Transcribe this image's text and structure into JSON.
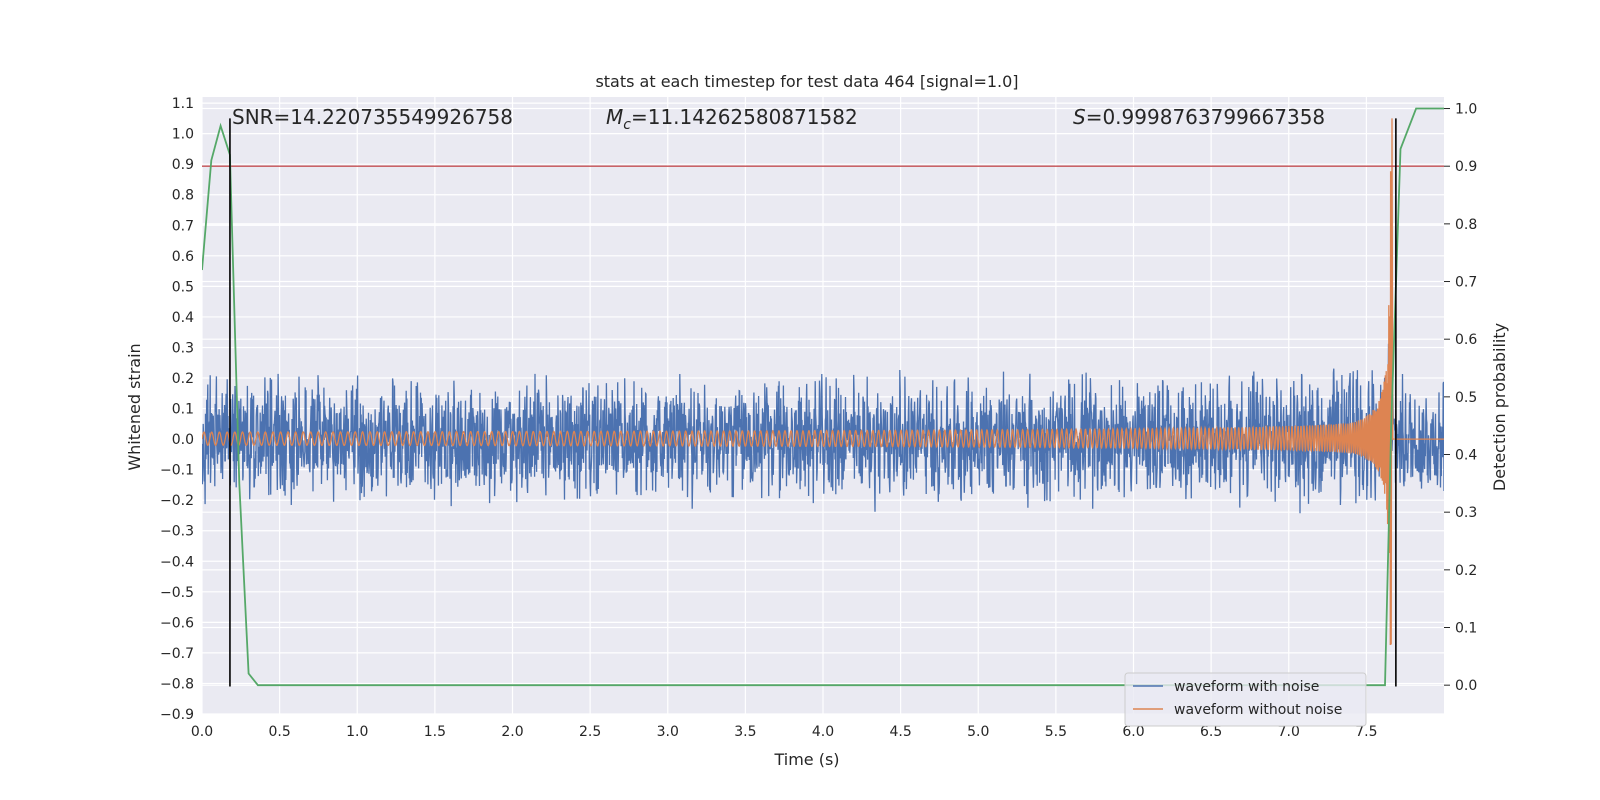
{
  "chart_data": {
    "type": "line",
    "title": "stats at each timestep for test data 464 [signal=1.0]",
    "xlabel": "Time (s)",
    "ylabel": "Whitened strain",
    "y2label": "Detection probability",
    "xlim": [
      0.0,
      8.0
    ],
    "ylim": [
      -0.9,
      1.12
    ],
    "y2lim": [
      -0.05,
      1.02
    ],
    "xticks": [
      "0.0",
      "0.5",
      "1.0",
      "1.5",
      "2.0",
      "2.5",
      "3.0",
      "3.5",
      "4.0",
      "4.5",
      "5.0",
      "5.5",
      "6.0",
      "6.5",
      "7.0",
      "7.5"
    ],
    "yticks": [
      "1.1",
      "1.0",
      "0.9",
      "0.8",
      "0.7",
      "0.6",
      "0.5",
      "0.4",
      "0.3",
      "0.2",
      "0.1",
      "0.0",
      "−0.1",
      "−0.2",
      "−0.3",
      "−0.4",
      "−0.5",
      "−0.6",
      "−0.7",
      "−0.8",
      "−0.9"
    ],
    "y2ticks": [
      "1.0",
      "0.9",
      "0.8",
      "0.7",
      "0.6",
      "0.5",
      "0.4",
      "0.3",
      "0.2",
      "0.1",
      "0.0"
    ],
    "grid": true,
    "legend_position": "lower-right",
    "annotations": {
      "snr": "SNR=14.220735549926758",
      "mc_symbol": "M",
      "mc_sub": "c",
      "mc_value": "=11.14262580871582",
      "s_symbol": "S",
      "s_value": "=0.9998763799667358"
    },
    "series": [
      {
        "name": "waveform with noise",
        "color": "#4c72b0",
        "axis": "left",
        "description_points": {
          "t_start": 0.0,
          "t_end": 8.0,
          "noise_amplitude": 0.2,
          "peak_time": 7.62,
          "peak_max": 0.65,
          "peak_min": -0.59
        }
      },
      {
        "name": "waveform without noise",
        "color": "#dd8452",
        "axis": "left",
        "description_points": {
          "t_start": 0.0,
          "t_end": 7.67,
          "start_amplitude": 0.02,
          "merger_time": 7.66,
          "merger_max": 1.05,
          "merger_min": -0.58,
          "f_start": 20,
          "f_end": 40
        }
      },
      {
        "name": "",
        "color": "#55a868",
        "axis": "right",
        "x": [
          0.0,
          0.06,
          0.12,
          0.18,
          0.24,
          0.3,
          0.36,
          7.55,
          7.62,
          7.66,
          7.72,
          7.82,
          8.0
        ],
        "y": [
          0.72,
          0.91,
          0.97,
          0.92,
          0.35,
          0.02,
          0.0,
          0.0,
          0.0,
          0.45,
          0.93,
          1.0,
          1.0
        ]
      }
    ],
    "threshold": {
      "axis": "right",
      "y": 0.9,
      "color": "#c44e52"
    },
    "vlines": [
      {
        "x": 0.18,
        "ymin": -0.81,
        "ymax": 1.05,
        "color": "#000000"
      },
      {
        "x": 7.69,
        "ymin": -0.81,
        "ymax": 1.05,
        "color": "#000000"
      }
    ]
  }
}
